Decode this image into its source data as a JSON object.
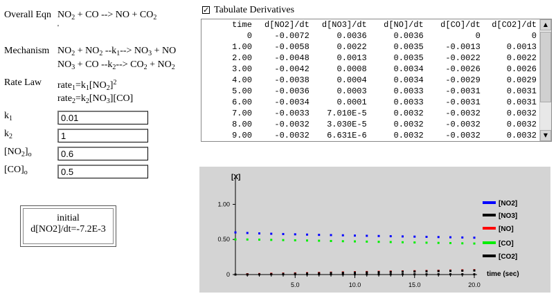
{
  "equation": {
    "label": "Overall Eqn",
    "r1": "NO",
    "r1_sub": "2",
    "r2": " + CO --> NO + CO",
    "r2_sub": "2",
    "tick": "'"
  },
  "mechanism": {
    "label": "Mechanism",
    "step1": {
      "a": "NO",
      "a_sub": "2",
      "b": " + NO",
      "b_sub": "2",
      "c": " --k",
      "k_sub": "1",
      "d": "--> NO",
      "d_sub": "3",
      "e": " + NO"
    },
    "step2": {
      "a": "NO",
      "a_sub": "3",
      "b": " + CO --k",
      "k_sub": "2",
      "c": "--> CO",
      "c_sub": "2",
      "d": " + NO",
      "d_sub": "2"
    }
  },
  "rate_law": {
    "label": "Rate Law",
    "rate1": {
      "a": "rate",
      "a_sub": "1",
      "b": "=k",
      "b_sub": "1",
      "c": "[NO",
      "c_sub": "2",
      "d": "]",
      "d_sup": "2"
    },
    "rate2": {
      "a": "rate",
      "a_sub": "2",
      "b": "=k",
      "b_sub": "2",
      "c": "[NO",
      "c_sub": "3",
      "d": "][CO]"
    }
  },
  "params": {
    "k1": {
      "label": "k",
      "sub": "1",
      "value": "0.01"
    },
    "k2": {
      "label": "k",
      "sub": "2",
      "value": "1"
    },
    "no2o": {
      "label": "[NO",
      "sub": "2",
      "label2": "]",
      "sub2": "o",
      "value": "0.6"
    },
    "coo": {
      "label": "[CO]",
      "sub": "o",
      "value": "0.5"
    }
  },
  "tabulate": {
    "checked_mark": "✓",
    "label": "Tabulate Derivatives"
  },
  "table": {
    "headers": [
      "time",
      "d[NO2]/dt",
      "d[NO3]/dt",
      "d[NO]/dt",
      "d[CO]/dt",
      "d[CO2]/dt"
    ],
    "rows": [
      [
        "0",
        "-0.0072",
        "0.0036",
        "0.0036",
        "0",
        "0"
      ],
      [
        "1.00",
        "-0.0058",
        "0.0022",
        "0.0035",
        "-0.0013",
        "0.0013"
      ],
      [
        "2.00",
        "-0.0048",
        "0.0013",
        "0.0035",
        "-0.0022",
        "0.0022"
      ],
      [
        "3.00",
        "-0.0042",
        "0.0008",
        "0.0034",
        "-0.0026",
        "0.0026"
      ],
      [
        "4.00",
        "-0.0038",
        "0.0004",
        "0.0034",
        "-0.0029",
        "0.0029"
      ],
      [
        "5.00",
        "-0.0036",
        "0.0003",
        "0.0033",
        "-0.0031",
        "0.0031"
      ],
      [
        "6.00",
        "-0.0034",
        "0.0001",
        "0.0033",
        "-0.0031",
        "0.0031"
      ],
      [
        "7.00",
        "-0.0033",
        "7.010E-5",
        "0.0032",
        "-0.0032",
        "0.0032"
      ],
      [
        "8.00",
        "-0.0032",
        "3.030E-5",
        "0.0032",
        "-0.0032",
        "0.0032"
      ],
      [
        "9.00",
        "-0.0032",
        "6.631E-6",
        "0.0032",
        "-0.0032",
        "0.0032"
      ]
    ]
  },
  "initial": {
    "title": "initial",
    "value": "d[NO2]/dt=-7.2E-3"
  },
  "scroll": {
    "up": "▲",
    "down": "▼"
  },
  "chart_data": {
    "type": "scatter",
    "ylabel": "[X]",
    "xlabel": "time (sec)",
    "xlim": [
      0,
      20
    ],
    "ylim": [
      0,
      1.3
    ],
    "xticks": [
      "5.0",
      "10.0",
      "15.0",
      "20.0"
    ],
    "yticks": [
      "0",
      "0.50",
      "1.00"
    ],
    "legend_position": "right",
    "series": [
      {
        "name": "[NO2]",
        "color": "#0000ff",
        "x": [
          0,
          1,
          2,
          3,
          4,
          5,
          6,
          7,
          8,
          9,
          10,
          11,
          12,
          13,
          14,
          15,
          16,
          17,
          18,
          19,
          20
        ],
        "y": [
          0.6,
          0.592,
          0.586,
          0.581,
          0.577,
          0.573,
          0.569,
          0.565,
          0.562,
          0.559,
          0.555,
          0.552,
          0.549,
          0.546,
          0.543,
          0.54,
          0.537,
          0.534,
          0.531,
          0.528,
          0.525
        ]
      },
      {
        "name": "[NO3]",
        "color": "#000000",
        "x": [
          0,
          1,
          2,
          3,
          4,
          5,
          6,
          7,
          8,
          9,
          10,
          11,
          12,
          13,
          14,
          15,
          16,
          17,
          18,
          19,
          20
        ],
        "y": [
          0,
          0.003,
          0.004,
          0.004,
          0.004,
          0.004,
          0.004,
          0.004,
          0.004,
          0.004,
          0.004,
          0.004,
          0.004,
          0.004,
          0.004,
          0.004,
          0.004,
          0.004,
          0.004,
          0.004,
          0.004
        ]
      },
      {
        "name": "[NO]",
        "color": "#ff0000",
        "x": [
          0,
          1,
          2,
          3,
          4,
          5,
          6,
          7,
          8,
          9,
          10,
          11,
          12,
          13,
          14,
          15,
          16,
          17,
          18,
          19,
          20
        ],
        "y": [
          0,
          0.004,
          0.007,
          0.011,
          0.014,
          0.017,
          0.02,
          0.023,
          0.027,
          0.03,
          0.033,
          0.036,
          0.039,
          0.042,
          0.045,
          0.048,
          0.051,
          0.054,
          0.057,
          0.06,
          0.063
        ]
      },
      {
        "name": "[CO]",
        "color": "#00ee00",
        "x": [
          0,
          1,
          2,
          3,
          4,
          5,
          6,
          7,
          8,
          9,
          10,
          11,
          12,
          13,
          14,
          15,
          16,
          17,
          18,
          19,
          20
        ],
        "y": [
          0.5,
          0.499,
          0.497,
          0.494,
          0.491,
          0.488,
          0.485,
          0.482,
          0.478,
          0.475,
          0.472,
          0.469,
          0.466,
          0.463,
          0.46,
          0.457,
          0.454,
          0.451,
          0.448,
          0.445,
          0.442
        ]
      },
      {
        "name": "[CO2]",
        "color": "#000000",
        "x": [
          0,
          1,
          2,
          3,
          4,
          5,
          6,
          7,
          8,
          9,
          10,
          11,
          12,
          13,
          14,
          15,
          16,
          17,
          18,
          19,
          20
        ],
        "y": [
          0,
          0.001,
          0.003,
          0.006,
          0.009,
          0.012,
          0.015,
          0.018,
          0.022,
          0.025,
          0.028,
          0.031,
          0.034,
          0.037,
          0.04,
          0.043,
          0.046,
          0.049,
          0.052,
          0.055,
          0.058
        ]
      }
    ]
  }
}
